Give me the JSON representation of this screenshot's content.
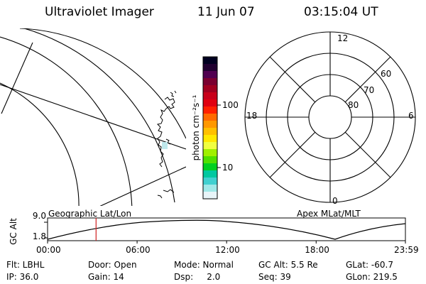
{
  "header": {
    "instrument": "Ultraviolet Imager",
    "date": "11 Jun 07",
    "time": "03:15:04 UT"
  },
  "colorbar": {
    "unit_label": "photon cm⁻²s⁻¹",
    "tick_100": "100",
    "tick_10": "10",
    "colors": [
      "#000020",
      "#200030",
      "#500050",
      "#7a0030",
      "#a00020",
      "#c8001a",
      "#e00010",
      "#ff2000",
      "#ff6a00",
      "#ff9800",
      "#ffc000",
      "#ffe800",
      "#f0ff40",
      "#a0f000",
      "#50e000",
      "#00d020",
      "#00c8a0",
      "#40d0d0",
      "#a0e8e8",
      "#e8f4f8"
    ]
  },
  "polar_plot": {
    "mlt_labels": {
      "top": "12",
      "bottom": "0",
      "left": "18",
      "right": "6"
    },
    "lat_labels": [
      "60",
      "70",
      "80"
    ]
  },
  "timeline": {
    "left_label": "Geographic Lat/Lon",
    "right_label": "Apex MLat/MLT",
    "axis_title": "GC Alt",
    "y_top": "9.0",
    "y_bottom": "1.8",
    "x_ticks": [
      "00:00",
      "06:00",
      "12:00",
      "18:00",
      "23:59"
    ],
    "marker_time": "03:15",
    "marker_color": "#d02020"
  },
  "footer": {
    "row1": [
      "Flt: LBHL",
      "Door: Open",
      "Mode: Normal",
      "GC Alt: 5.5 Re",
      "GLat: -60.7"
    ],
    "row2": [
      "IP: 36.0",
      "Gain: 14",
      "Dsp:     2.0",
      "Seq: 39",
      "GLon: 219.5"
    ]
  }
}
